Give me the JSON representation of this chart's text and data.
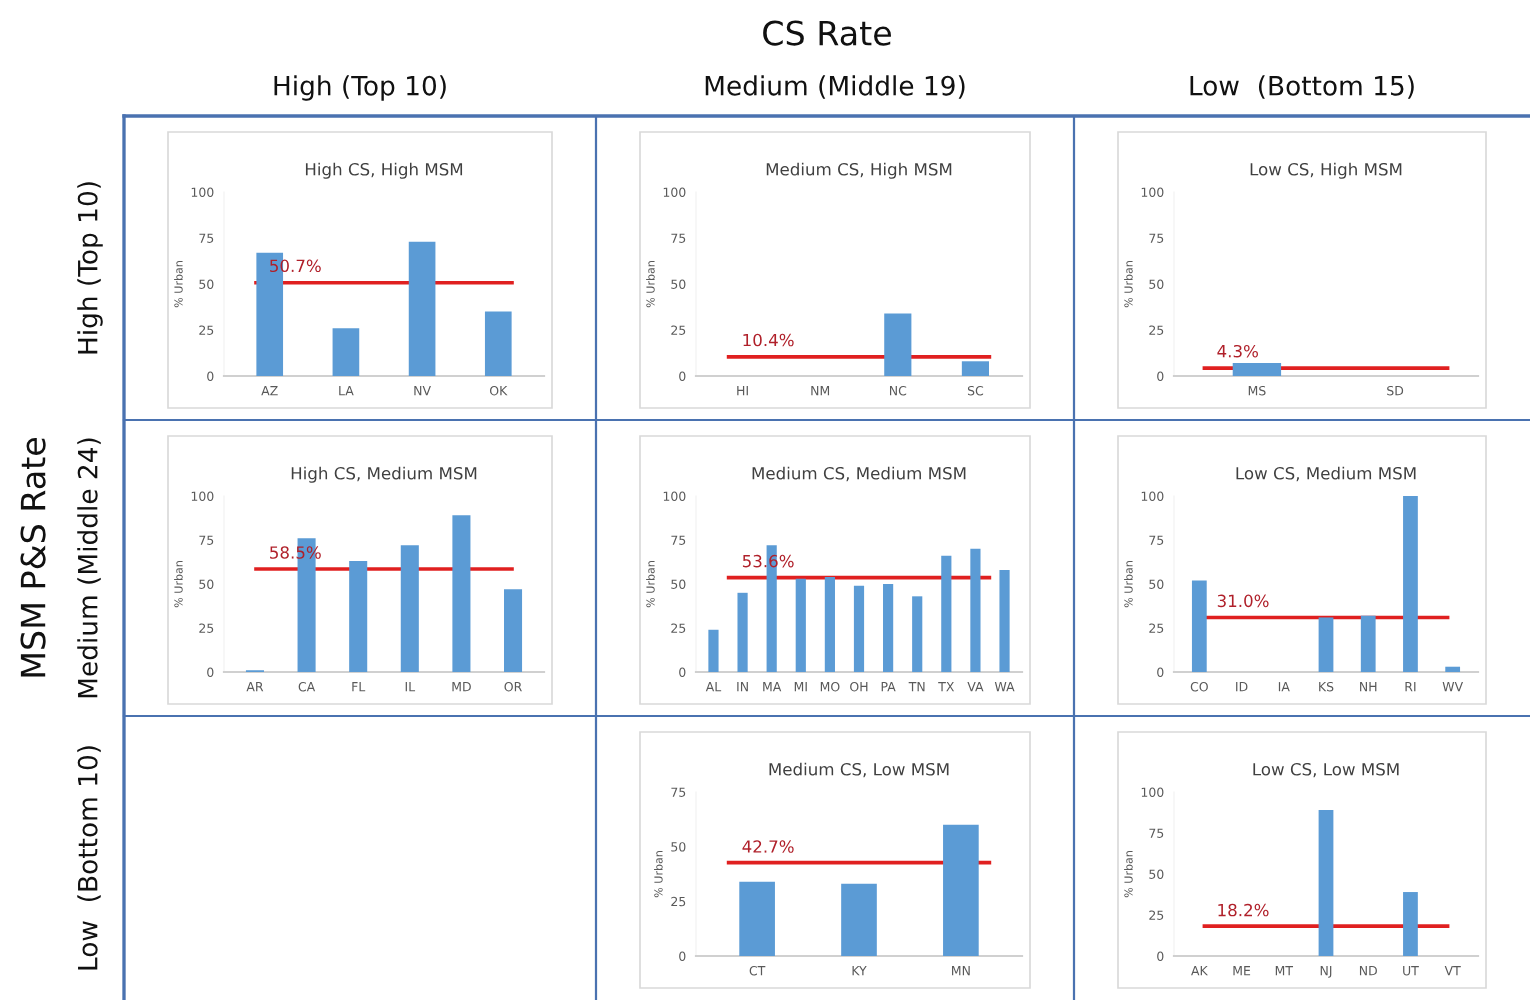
{
  "chart_data": [
    {
      "type": "other",
      "annotations": [
        "CS Rate",
        "High (Top 10)",
        "Medium (Middle 19)",
        "Low  (Bottom 15)",
        "MSM P&S Rate",
        "High (Top 10)",
        "Medium (Middle 24)",
        "Low  (Bottom 10)"
      ]
    },
    {
      "type": "bar",
      "title": "High CS, High MSM",
      "ylabel": "% Urban",
      "categories": [
        "AZ",
        "LA",
        "NV",
        "OK"
      ],
      "values": [
        67,
        26,
        73,
        35
      ],
      "color": "#5b9bd5",
      "ylim": [
        0,
        100
      ],
      "yticks": [
        0,
        25,
        50,
        75,
        100
      ],
      "ref_lines": [
        {
          "axis": "y",
          "value": 50.7,
          "label": "50.7%",
          "color": "#e02020"
        }
      ]
    },
    {
      "type": "bar",
      "title": "Medium CS, High MSM",
      "ylabel": "% Urban",
      "categories": [
        "HI",
        "NM",
        "NC",
        "SC"
      ],
      "values": [
        0,
        0,
        34,
        8
      ],
      "color": "#5b9bd5",
      "ylim": [
        0,
        100
      ],
      "yticks": [
        0,
        25,
        50,
        75,
        100
      ],
      "ref_lines": [
        {
          "axis": "y",
          "value": 10.4,
          "label": "10.4%",
          "color": "#e02020"
        }
      ]
    },
    {
      "type": "bar",
      "title": "Low CS, High MSM",
      "ylabel": "% Urban",
      "categories": [
        "MS",
        "SD"
      ],
      "values": [
        7,
        0
      ],
      "color": "#5b9bd5",
      "ylim": [
        0,
        100
      ],
      "yticks": [
        0,
        25,
        50,
        75,
        100
      ],
      "ref_lines": [
        {
          "axis": "y",
          "value": 4.3,
          "label": "4.3%",
          "color": "#e02020"
        }
      ]
    },
    {
      "type": "bar",
      "title": "High CS, Medium MSM",
      "ylabel": "% Urban",
      "categories": [
        "AR",
        "CA",
        "FL",
        "IL",
        "MD",
        "OR"
      ],
      "values": [
        1,
        76,
        63,
        72,
        89,
        47
      ],
      "color": "#5b9bd5",
      "ylim": [
        0,
        100
      ],
      "yticks": [
        0,
        25,
        50,
        75,
        100
      ],
      "ref_lines": [
        {
          "axis": "y",
          "value": 58.5,
          "label": "58.5%",
          "color": "#e02020"
        }
      ]
    },
    {
      "type": "bar",
      "title": "Medium CS, Medium MSM",
      "ylabel": "% Urban",
      "categories": [
        "AL",
        "IN",
        "MA",
        "MI",
        "MO",
        "OH",
        "PA",
        "TN",
        "TX",
        "VA",
        "WA"
      ],
      "values": [
        24,
        45,
        72,
        53,
        54,
        49,
        50,
        43,
        66,
        70,
        58
      ],
      "color": "#5b9bd5",
      "ylim": [
        0,
        100
      ],
      "yticks": [
        0,
        25,
        50,
        75,
        100
      ],
      "ref_lines": [
        {
          "axis": "y",
          "value": 53.6,
          "label": "53.6%",
          "color": "#e02020"
        }
      ]
    },
    {
      "type": "bar",
      "title": "Low CS, Medium MSM",
      "ylabel": "% Urban",
      "categories": [
        "CO",
        "ID",
        "IA",
        "KS",
        "NH",
        "RI",
        "WV"
      ],
      "values": [
        52,
        0,
        0,
        31,
        32,
        100,
        3
      ],
      "color": "#5b9bd5",
      "ylim": [
        0,
        100
      ],
      "yticks": [
        0,
        25,
        50,
        75,
        100
      ],
      "ref_lines": [
        {
          "axis": "y",
          "value": 31.0,
          "label": "31.0%",
          "color": "#e02020"
        }
      ]
    },
    {
      "type": "bar",
      "title": "Medium CS, Low MSM",
      "ylabel": "% Urban",
      "categories": [
        "CT",
        "KY",
        "MN"
      ],
      "values": [
        34,
        33,
        60
      ],
      "color": "#5b9bd5",
      "ylim": [
        0,
        75
      ],
      "yticks": [
        0,
        25,
        50,
        75
      ],
      "ref_lines": [
        {
          "axis": "y",
          "value": 42.7,
          "label": "42.7%",
          "color": "#e02020"
        }
      ]
    },
    {
      "type": "bar",
      "title": "Low CS, Low MSM",
      "ylabel": "% Urban",
      "categories": [
        "AK",
        "ME",
        "MT",
        "NJ",
        "ND",
        "UT",
        "VT"
      ],
      "values": [
        0,
        0,
        0,
        89,
        0,
        39,
        0
      ],
      "color": "#5b9bd5",
      "ylim": [
        0,
        100
      ],
      "yticks": [
        0,
        25,
        50,
        75,
        100
      ],
      "ref_lines": [
        {
          "axis": "y",
          "value": 18.2,
          "label": "18.2%",
          "color": "#e02020"
        }
      ]
    }
  ]
}
